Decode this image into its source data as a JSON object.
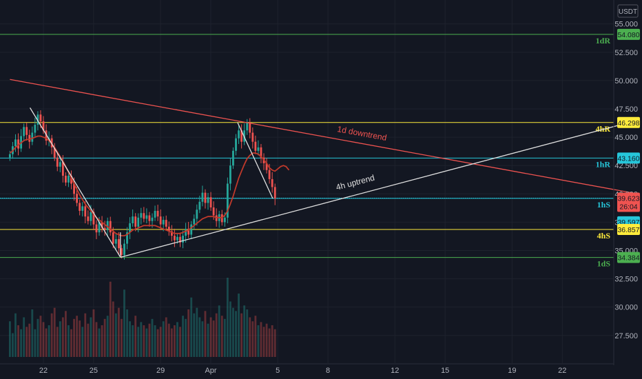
{
  "currency": "USDT",
  "chart_data": {
    "type": "candlestick",
    "title": "",
    "ylim": [
      25.6,
      56.2
    ],
    "y_ticks": [
      "55.000",
      "52.500",
      "50.000",
      "47.500",
      "45.000",
      "42.500",
      "40.000",
      "37.500",
      "35.000",
      "32.500",
      "30.000",
      "27.500"
    ],
    "y_tick_values": [
      55,
      52.5,
      50,
      47.5,
      45,
      42.5,
      40,
      37.5,
      35,
      32.5,
      30,
      27.5
    ],
    "x_ticks": [
      {
        "label": "22",
        "day": 22
      },
      {
        "label": "25",
        "day": 25
      },
      {
        "label": "29",
        "day": 29
      },
      {
        "label": "Apr",
        "day": 32
      },
      {
        "label": "5",
        "day": 36
      },
      {
        "label": "8",
        "day": 39
      },
      {
        "label": "12",
        "day": 43
      },
      {
        "label": "15",
        "day": 46
      },
      {
        "label": "19",
        "day": 50
      },
      {
        "label": "22",
        "day": 53
      }
    ],
    "levels": [
      {
        "name": "1dR",
        "price": 54.08,
        "label": "54.080",
        "color": "#4caf50"
      },
      {
        "name": "4hR",
        "price": 46.298,
        "label": "46.298",
        "color": "#ffeb3b"
      },
      {
        "name": "1hR",
        "price": 43.16,
        "label": "43.160",
        "color": "#26c6da"
      },
      {
        "name": "1hS",
        "price": 39.597,
        "label": "39.597",
        "color": "#26c6da"
      },
      {
        "name": "4hS",
        "price": 36.857,
        "label": "36.857",
        "color": "#ffeb3b"
      },
      {
        "name": "1dS",
        "price": 34.384,
        "label": "34.384",
        "color": "#4caf50"
      }
    ],
    "last_price": {
      "label": "39.623",
      "countdown": "26:04",
      "color": "#ef5350"
    },
    "trendlines": [
      {
        "name": "1d downtrend",
        "color": "#ef5350",
        "from": {
          "day": 20,
          "price": 50.1
        },
        "to": {
          "day": 57.5,
          "price": 40.0
        }
      },
      {
        "name": "4h uptrend",
        "color": "#e0e0e0",
        "from": {
          "day": 26.6,
          "price": 34.4
        },
        "to": {
          "day": 57.0,
          "price": 46.3
        }
      }
    ],
    "annotations": [
      {
        "text": "1d downtrend",
        "color": "#ef5350"
      },
      {
        "text": "4h uptrend",
        "color": "#e0e0e0"
      }
    ],
    "price_series": {
      "start_day": 20,
      "step_day": 0.1667,
      "close": [
        43.5,
        44.2,
        44.8,
        44.0,
        45.1,
        45.9,
        45.2,
        44.6,
        45.4,
        46.1,
        47.0,
        46.4,
        45.6,
        44.7,
        44.9,
        44.1,
        43.2,
        42.4,
        42.8,
        41.6,
        41.0,
        41.6,
        40.9,
        40.0,
        39.2,
        38.5,
        38.9,
        38.0,
        37.6,
        38.4,
        37.3,
        36.6,
        37.5,
        37.0,
        36.8,
        37.6,
        36.6,
        35.6,
        36.0,
        35.2,
        34.6,
        35.6,
        36.6,
        37.4,
        38.0,
        37.1,
        37.9,
        38.3,
        37.8,
        38.1,
        37.6,
        37.9,
        38.5,
        38.0,
        37.3,
        37.7,
        37.1,
        36.7,
        36.3,
        35.9,
        36.2,
        35.7,
        36.3,
        36.9,
        36.4,
        37.3,
        37.8,
        38.6,
        39.3,
        40.1,
        39.2,
        39.7,
        38.8,
        38.1,
        37.6,
        38.2,
        37.5,
        37.9,
        40.9,
        42.5,
        43.8,
        44.9,
        45.6,
        44.6,
        45.6,
        46.3,
        45.4,
        44.6,
        43.8,
        44.1,
        43.2,
        42.7,
        42.1,
        41.3,
        40.6,
        39.6
      ],
      "ema": [
        43.6,
        43.8,
        44.1,
        44.3,
        44.5,
        44.7,
        44.8,
        44.8,
        44.9,
        45.0,
        45.1,
        45.1,
        45.0,
        44.9,
        44.7,
        44.4,
        44.1,
        43.7,
        43.3,
        42.9,
        42.4,
        41.9,
        41.4,
        40.9,
        40.4,
        39.9,
        39.5,
        39.1,
        38.8,
        38.5,
        38.2,
        37.9,
        37.7,
        37.5,
        37.3,
        37.1,
        36.9,
        36.7,
        36.5,
        36.4,
        36.3,
        36.3,
        36.4,
        36.6,
        36.8,
        36.9,
        37.0,
        37.1,
        37.2,
        37.2,
        37.2,
        37.2,
        37.2,
        37.1,
        37.0,
        36.9,
        36.8,
        36.7,
        36.6,
        36.5,
        36.5,
        36.5,
        36.6,
        36.7,
        36.8,
        37.0,
        37.2,
        37.4,
        37.6,
        37.8,
        37.9,
        38.0,
        38.0,
        38.0,
        37.9,
        37.9,
        37.9,
        38.1,
        38.5,
        39.1,
        39.8,
        40.6,
        41.4,
        42.0,
        42.6,
        43.1,
        43.4,
        43.6,
        43.6,
        43.5,
        43.3,
        43.0,
        42.7,
        42.3,
        42.1,
        42.0
      ],
      "ema_extend": [
        42.2,
        42.4,
        42.5,
        42.4,
        42.1
      ],
      "volume": [
        0.45,
        0.3,
        0.55,
        0.4,
        0.35,
        0.5,
        0.38,
        0.42,
        0.6,
        0.35,
        0.48,
        0.52,
        0.44,
        0.36,
        0.4,
        0.55,
        0.62,
        0.38,
        0.45,
        0.5,
        0.58,
        0.4,
        0.35,
        0.48,
        0.52,
        0.46,
        0.38,
        0.55,
        0.42,
        0.5,
        0.6,
        0.44,
        0.36,
        0.4,
        0.48,
        0.52,
        0.95,
        0.7,
        0.55,
        0.62,
        0.48,
        0.85,
        0.6,
        0.45,
        0.4,
        0.52,
        0.38,
        0.44,
        0.4,
        0.36,
        0.42,
        0.48,
        0.4,
        0.35,
        0.38,
        0.45,
        0.5,
        0.42,
        0.36,
        0.4,
        0.44,
        0.38,
        0.52,
        0.48,
        0.6,
        0.75,
        0.55,
        0.62,
        0.5,
        0.45,
        0.58,
        0.42,
        0.5,
        0.46,
        0.55,
        0.65,
        0.52,
        0.48,
        1.0,
        0.7,
        0.62,
        0.58,
        0.8,
        0.55,
        0.65,
        0.6,
        0.5,
        0.45,
        0.52,
        0.4,
        0.44,
        0.38,
        0.42,
        0.36,
        0.4,
        0.35
      ]
    }
  }
}
